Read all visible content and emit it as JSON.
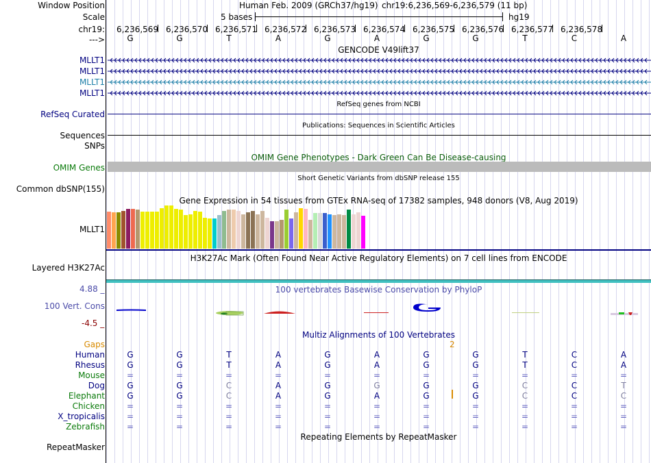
{
  "header": {
    "window_position_label": "Window Position",
    "scale_label": "Scale",
    "chr_label": "chr19:",
    "strand_label": "--->",
    "assembly_text": "Human Feb. 2009 (GRCh37/hg19)",
    "position_text": "chr19:6,236,569-6,236,579 (11 bp)",
    "scale_text": "5 bases",
    "scale_assembly": "hg19",
    "coordinates": [
      "6,236,569",
      "6,236,570",
      "6,236,571",
      "6,236,572",
      "6,236,573",
      "6,236,574",
      "6,236,575",
      "6,236,576",
      "6,236,577",
      "6,236,578"
    ],
    "bases": [
      "G",
      "G",
      "T",
      "A",
      "G",
      "A",
      "G",
      "G",
      "T",
      "C",
      "A"
    ]
  },
  "tracks": {
    "gencode": {
      "title": "GENCODE V49lift37",
      "transcripts": [
        {
          "label": "MLLT1",
          "color": "#000080"
        },
        {
          "label": "MLLT1",
          "color": "#000080"
        },
        {
          "label": "MLLT1",
          "color": "#1d7fa8"
        },
        {
          "label": "MLLT1",
          "color": "#000080"
        }
      ]
    },
    "refseq": {
      "title": "RefSeq genes from NCBI",
      "label": "RefSeq Curated"
    },
    "publications": {
      "title": "Publications: Sequences in Scientific Articles",
      "label": "Sequences"
    },
    "snps_label": "SNPs",
    "omim": {
      "title": "OMIM Gene Phenotypes - Dark Green Can Be Disease-causing",
      "label": "OMIM Genes"
    },
    "dbsnp": {
      "title": "Short Genetic Variants from dbSNP release 155",
      "label": "Common dbSNP(155)"
    },
    "gtex": {
      "title": "Gene Expression in 54 tissues from GTEx RNA-seq of 17382 samples, 948 donors (V8, Aug 2019)",
      "label": "MLLT1",
      "tissues": [
        {
          "value": 0.85,
          "color": "#ff8c69"
        },
        {
          "value": 0.84,
          "color": "#ffa54f"
        },
        {
          "value": 0.84,
          "color": "#8b8b00"
        },
        {
          "value": 0.88,
          "color": "#a0522d"
        },
        {
          "value": 0.92,
          "color": "#8b1c62"
        },
        {
          "value": 0.92,
          "color": "#ee6a50"
        },
        {
          "value": 0.9,
          "color": "#b4986d"
        },
        {
          "value": 0.86,
          "color": "#eeee00"
        },
        {
          "value": 0.86,
          "color": "#eeee00"
        },
        {
          "value": 0.86,
          "color": "#eeee00"
        },
        {
          "value": 0.86,
          "color": "#eeee00"
        },
        {
          "value": 0.94,
          "color": "#eeee00"
        },
        {
          "value": 1.0,
          "color": "#eeee00"
        },
        {
          "value": 1.0,
          "color": "#eeee00"
        },
        {
          "value": 0.92,
          "color": "#eeee00"
        },
        {
          "value": 0.9,
          "color": "#eeee00"
        },
        {
          "value": 0.78,
          "color": "#eeee00"
        },
        {
          "value": 0.8,
          "color": "#eeee00"
        },
        {
          "value": 0.88,
          "color": "#eeee00"
        },
        {
          "value": 0.85,
          "color": "#eeee00"
        },
        {
          "value": 0.72,
          "color": "#eeee00"
        },
        {
          "value": 0.7,
          "color": "#eeee00"
        },
        {
          "value": 0.7,
          "color": "#00cdcd"
        },
        {
          "value": 0.78,
          "color": "#9ac0cd"
        },
        {
          "value": 0.88,
          "color": "#8fbc8f"
        },
        {
          "value": 0.9,
          "color": "#cdb79e"
        },
        {
          "value": 0.9,
          "color": "#eecbad"
        },
        {
          "value": 0.88,
          "color": "#eed5d2"
        },
        {
          "value": 0.8,
          "color": "#cdb79e"
        },
        {
          "value": 0.84,
          "color": "#8b7355"
        },
        {
          "value": 0.88,
          "color": "#8b7355"
        },
        {
          "value": 0.8,
          "color": "#cdb79e"
        },
        {
          "value": 0.88,
          "color": "#cdb79e"
        },
        {
          "value": 0.72,
          "color": "#eed5d2"
        },
        {
          "value": 0.64,
          "color": "#7a378b"
        },
        {
          "value": 0.64,
          "color": "#cdb79e"
        },
        {
          "value": 0.66,
          "color": "#b4986d"
        },
        {
          "value": 0.9,
          "color": "#9acd32"
        },
        {
          "value": 0.7,
          "color": "#7a67ee"
        },
        {
          "value": 0.84,
          "color": "#cdb79e"
        },
        {
          "value": 0.94,
          "color": "#ffd700"
        },
        {
          "value": 0.92,
          "color": "#ffb6c1"
        },
        {
          "value": 0.66,
          "color": "#cdb79e"
        },
        {
          "value": 0.82,
          "color": "#b4eeb4"
        },
        {
          "value": 0.82,
          "color": "#d9d9d9"
        },
        {
          "value": 0.82,
          "color": "#3a5fcd"
        },
        {
          "value": 0.8,
          "color": "#1e90ff"
        },
        {
          "value": 0.78,
          "color": "#cdb79e"
        },
        {
          "value": 0.8,
          "color": "#cdb79e"
        },
        {
          "value": 0.78,
          "color": "#cdb79e"
        },
        {
          "value": 0.9,
          "color": "#008b45"
        },
        {
          "value": 0.8,
          "color": "#eed5d2"
        },
        {
          "value": 0.84,
          "color": "#eed5d2"
        },
        {
          "value": 0.76,
          "color": "#ff00ff"
        }
      ]
    },
    "h3k27ac": {
      "title": "H3K27Ac Mark (Often Found Near Active Regulatory Elements) on 7 cell lines from ENCODE",
      "label": "Layered H3K27Ac"
    },
    "phylop": {
      "title": "100 vertebrates Basewise Conservation by PhyloP",
      "label": "100 Vert. Cons",
      "ymax": "4.88 _",
      "ymin": "-4.5 _"
    },
    "multiz": {
      "title": "Multiz Alignments of 100 Vertebrates",
      "gaps_label": "Gaps",
      "gap_count": "2",
      "species": [
        {
          "name": "Human",
          "color": "#000080",
          "bases": [
            "G",
            "G",
            "T",
            "A",
            "G",
            "A",
            "G",
            "G",
            "T",
            "C",
            "A"
          ]
        },
        {
          "name": "Rhesus",
          "color": "#000080",
          "bases": [
            "G",
            "G",
            "T",
            "A",
            "G",
            "A",
            "G",
            "G",
            "T",
            "C",
            "A"
          ]
        },
        {
          "name": "Mouse",
          "color": "#0a7a0a",
          "bases": [
            "=",
            "=",
            "=",
            "=",
            "=",
            "=",
            "=",
            "=",
            "=",
            "=",
            "="
          ]
        },
        {
          "name": "Dog",
          "color": "#000080",
          "bases": [
            "G",
            "G",
            "C",
            "A",
            "G",
            "G",
            "G",
            "G",
            "C",
            "C",
            "T"
          ]
        },
        {
          "name": "Elephant",
          "color": "#0a7a0a",
          "bases": [
            "G",
            "G",
            "C",
            "A",
            "G",
            "A",
            "G",
            "G",
            "C",
            "C",
            "C"
          ]
        },
        {
          "name": "Chicken",
          "color": "#0a7a0a",
          "bases": [
            "=",
            "=",
            "=",
            "=",
            "=",
            "=",
            "=",
            "=",
            "=",
            "=",
            "="
          ]
        },
        {
          "name": "X_tropicalis",
          "color": "#000080",
          "bases": [
            "=",
            "=",
            "=",
            "=",
            "=",
            "=",
            "=",
            "=",
            "=",
            "=",
            "="
          ]
        },
        {
          "name": "Zebrafish",
          "color": "#0a7a0a",
          "bases": [
            "=",
            "=",
            "=",
            "=",
            "=",
            "=",
            "=",
            "=",
            "=",
            "=",
            "="
          ]
        }
      ]
    },
    "repeatmasker": {
      "title": "Repeating Elements by RepeatMasker",
      "label": "RepeatMasker"
    }
  },
  "colors": {
    "navy": "#000080",
    "teal": "#1d7fa8",
    "omim_gray": "#bbbbbb",
    "h3k27ac_line": "#40c0c0",
    "divider": "#000080"
  }
}
